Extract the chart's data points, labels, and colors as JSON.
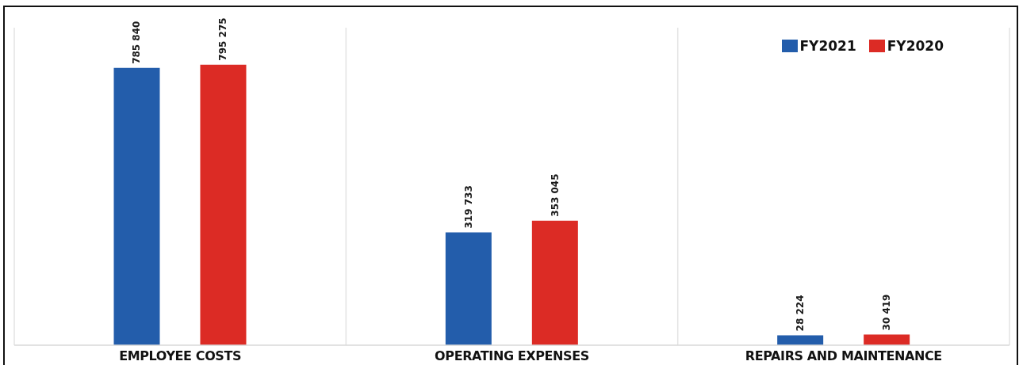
{
  "chart_data": {
    "type": "bar",
    "categories": [
      "EMPLOYEE COSTS",
      "OPERATING EXPENSES",
      "REPAIRS AND MAINTENANCE"
    ],
    "series": [
      {
        "name": "FY2021",
        "color": "#235dab",
        "values": [
          785840,
          319733,
          28224
        ],
        "value_labels": [
          "785 840",
          "319 733",
          "28 224"
        ]
      },
      {
        "name": "FY2020",
        "color": "#dc2b25",
        "values": [
          795275,
          353045,
          30419
        ],
        "value_labels": [
          "795 275",
          "353 045",
          "30 419"
        ]
      }
    ],
    "ylim": [
      0,
      900000
    ],
    "tick_labels": "x",
    "grid": "x",
    "legend": "top right"
  }
}
